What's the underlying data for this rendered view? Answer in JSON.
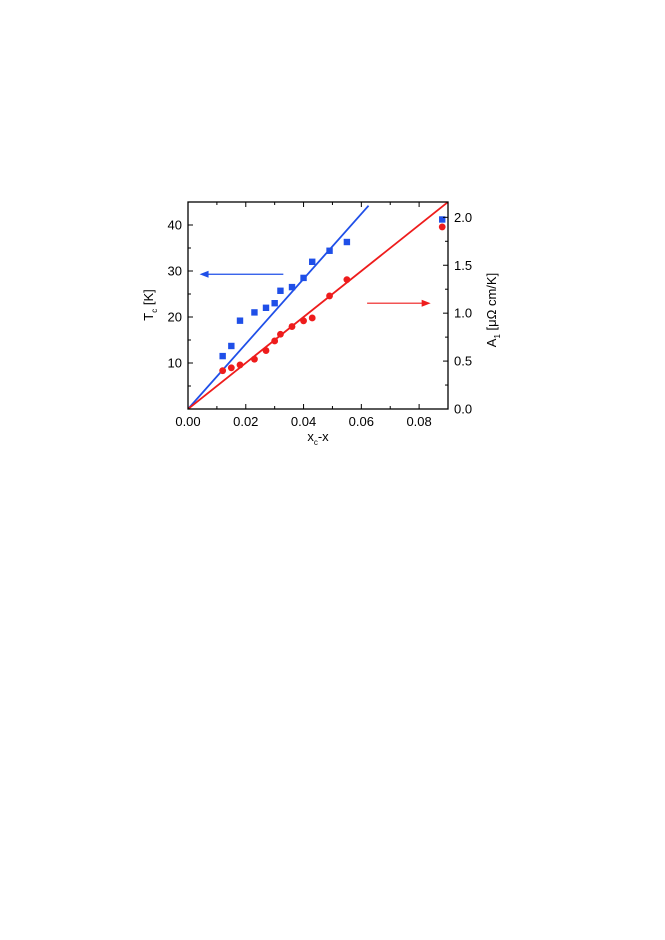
{
  "chart_data": {
    "type": "scatter",
    "xlabel": {
      "main": "x",
      "sub": "c",
      "tail": "-x"
    },
    "ylabel_left": {
      "main": "T",
      "sub": "c",
      "tail": " [K]"
    },
    "ylabel_right": {
      "main": "A",
      "sub": "1",
      "tail": " [μΩ cm/K]"
    },
    "xlim": [
      0.0,
      0.09
    ],
    "ylim_left": [
      0,
      45
    ],
    "ylim_right": [
      0.0,
      2.16
    ],
    "x_ticks": [
      "0.00",
      "0.02",
      "0.04",
      "0.06",
      "0.08"
    ],
    "y_left_ticks": [
      "10",
      "20",
      "30",
      "40"
    ],
    "y_right_ticks": [
      "0.0",
      "0.5",
      "1.0",
      "1.5",
      "2.0"
    ],
    "colors": {
      "tc": "#1f4fe8",
      "a1": "#ee1c1c"
    },
    "series": [
      {
        "axis": "left",
        "marker": "square",
        "x": [
          0.012,
          0.015,
          0.018,
          0.023,
          0.027,
          0.03,
          0.032,
          0.036,
          0.04,
          0.043,
          0.049,
          0.055,
          0.088
        ],
        "y": [
          11.5,
          13.7,
          19.2,
          21.0,
          22.0,
          23.0,
          25.7,
          26.5,
          28.5,
          32.0,
          34.4,
          36.3,
          41.2
        ]
      },
      {
        "axis": "right",
        "marker": "circle",
        "x": [
          0.012,
          0.015,
          0.018,
          0.023,
          0.027,
          0.03,
          0.032,
          0.036,
          0.04,
          0.043,
          0.049,
          0.055,
          0.088
        ],
        "y": [
          0.4,
          0.43,
          0.46,
          0.52,
          0.61,
          0.71,
          0.78,
          0.86,
          0.92,
          0.95,
          1.18,
          1.35,
          1.9
        ]
      }
    ],
    "fit_lines": [
      {
        "axis": "left",
        "x": [
          0.0,
          0.0625
        ],
        "y": [
          0,
          44.2
        ]
      },
      {
        "axis": "right",
        "x": [
          0.0,
          0.09
        ],
        "y": [
          0.0,
          2.16
        ]
      }
    ],
    "arrows": [
      {
        "direction": "left",
        "color": "tc",
        "from": [
          0.033,
          29.3
        ],
        "to": [
          0.004,
          29.3
        ]
      },
      {
        "direction": "right",
        "color": "a1",
        "from": [
          0.062,
          23.0
        ],
        "to": [
          0.084,
          23.0
        ]
      }
    ]
  }
}
